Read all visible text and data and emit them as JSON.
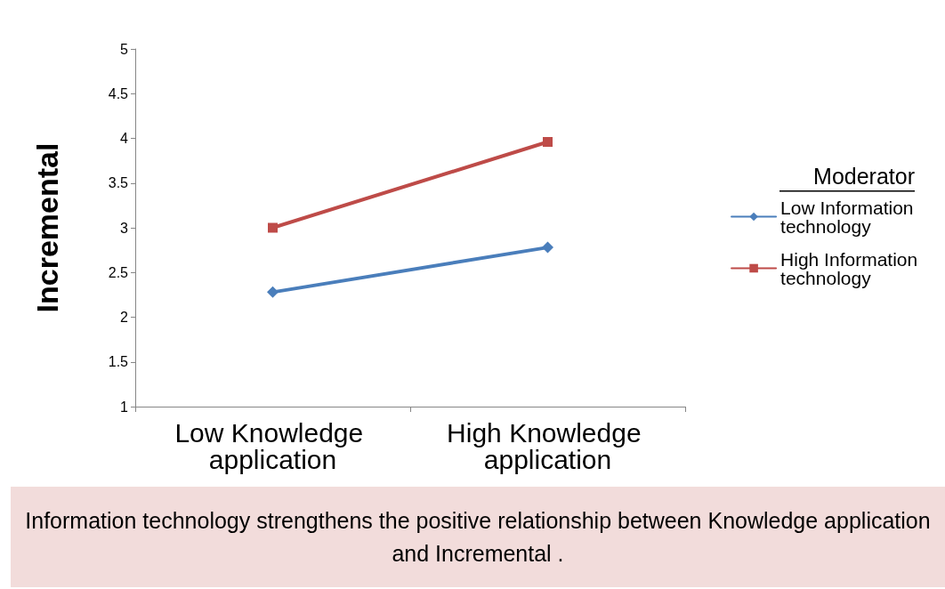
{
  "chart_data": {
    "type": "line",
    "ylabel": "Incremental",
    "legend_title": "Moderator",
    "categories": [
      "Low Knowledge application",
      "High Knowledge application"
    ],
    "series": [
      {
        "name": "Low Information technology",
        "color": "#4a7ebb",
        "marker": "diamond",
        "values": [
          2.28,
          2.78
        ]
      },
      {
        "name": "High Information technology",
        "color": "#be4b48",
        "marker": "square",
        "values": [
          3.0,
          3.96
        ]
      }
    ],
    "ylim": [
      1,
      5
    ],
    "yticks": [
      1,
      1.5,
      2,
      2.5,
      3,
      3.5,
      4,
      4.5,
      5
    ],
    "grid": false,
    "legend": "right",
    "annotations": [
      "Information technology strengthens the positive relationship between Knowledge application and Incremental ."
    ]
  }
}
